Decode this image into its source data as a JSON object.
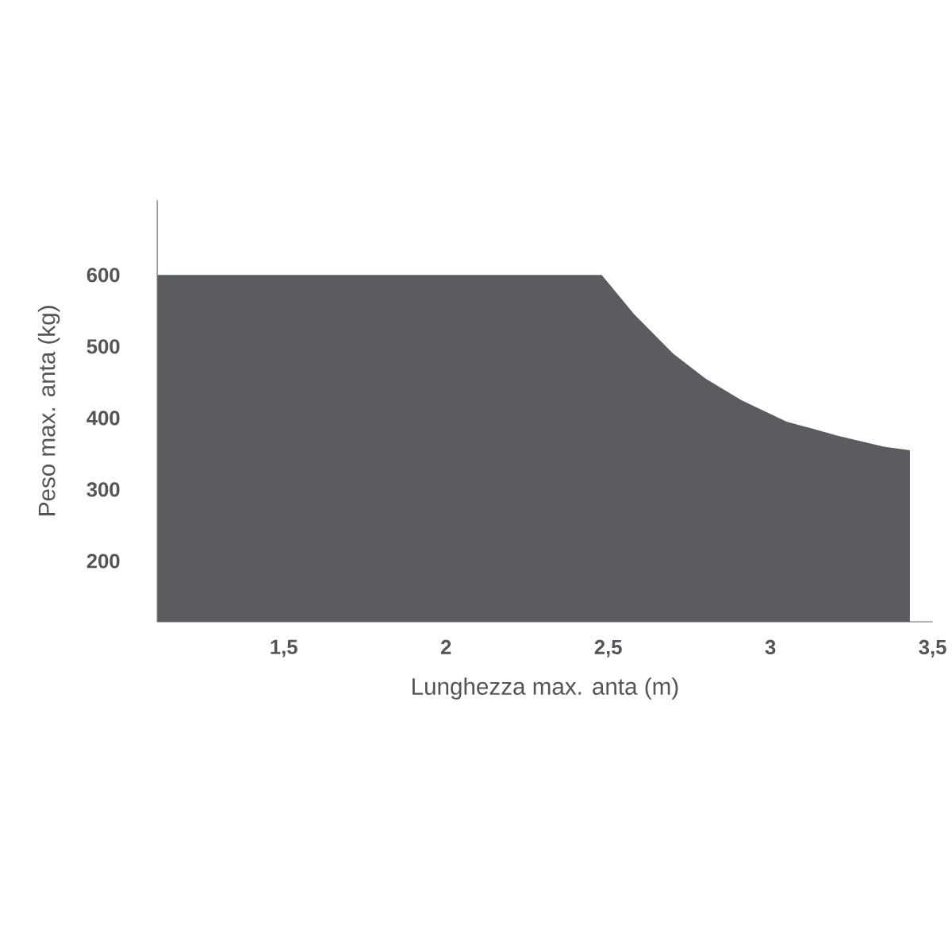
{
  "chart_data": {
    "type": "area",
    "xlabel": "Lunghezza max. anta (m)",
    "ylabel": "Peso max. anta (kg)",
    "x": [
      1.11,
      2.48,
      2.58,
      2.7,
      2.8,
      2.91,
      3.05,
      3.21,
      3.35,
      3.43
    ],
    "values": [
      600,
      600,
      545,
      490,
      455,
      425,
      395,
      375,
      360,
      355
    ],
    "color": "#5b5c60",
    "xlim": [
      1.11,
      3.5
    ],
    "ylim": [
      115,
      705
    ],
    "xticks": [
      {
        "value": 1.5,
        "label": "1,5"
      },
      2,
      {
        "value": 2.5,
        "label": "2,5"
      },
      3,
      {
        "value": 3.5,
        "label": "3,5"
      }
    ],
    "yticks": [
      200,
      300,
      400,
      500,
      600
    ]
  }
}
